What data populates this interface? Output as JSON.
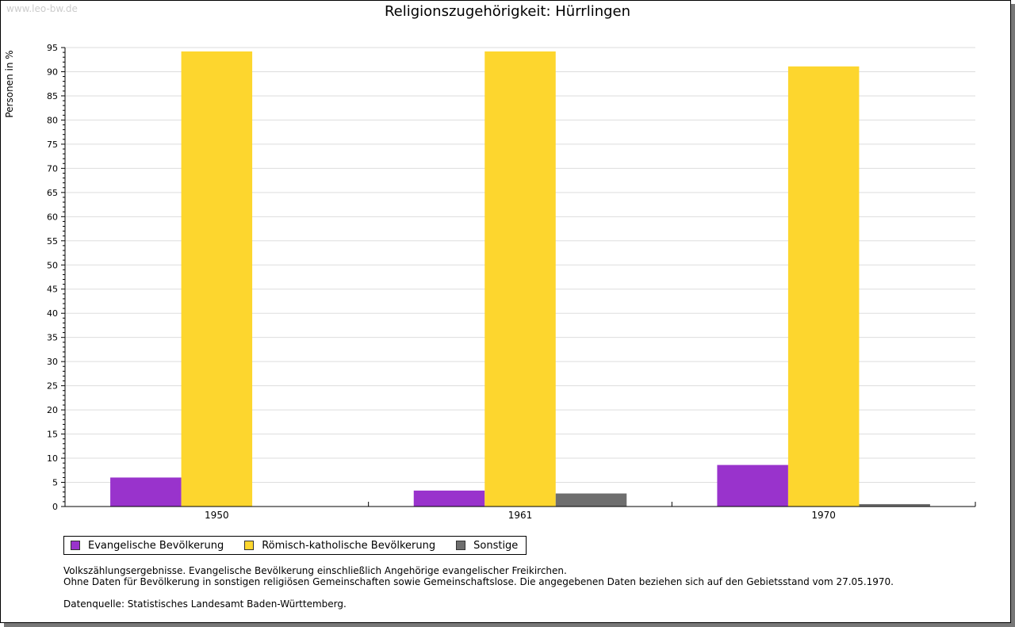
{
  "watermark": "www.leo-bw.de",
  "chart_data": {
    "type": "bar",
    "title": "Religionszugehörigkeit: Hürrlingen",
    "ylabel": "Personen in %",
    "xlabel": "",
    "ylim": [
      0,
      95
    ],
    "yticks": [
      0,
      5,
      10,
      15,
      20,
      25,
      30,
      35,
      40,
      45,
      50,
      55,
      60,
      65,
      70,
      75,
      80,
      85,
      90,
      95
    ],
    "grid": true,
    "categories": [
      "1950",
      "1961",
      "1970"
    ],
    "series": [
      {
        "name": "Evangelische Bevölkerung",
        "color": "#9933cc",
        "values": [
          6.0,
          3.3,
          8.6
        ]
      },
      {
        "name": "Römisch-katholische Bevölkerung",
        "color": "#fdd62e",
        "values": [
          94.2,
          94.2,
          91.1
        ]
      },
      {
        "name": "Sonstige",
        "color": "#6e6e6e",
        "values": [
          0,
          2.7,
          0.5
        ]
      }
    ],
    "legend_position": "bottom-left"
  },
  "notes": [
    "Volkszählungsergebnisse. Evangelische Bevölkerung einschließlich Angehörige evangelischer Freikirchen.",
    "Ohne Daten für Bevölkerung in sonstigen religiösen Gemeinschaften sowie Gemeinschaftslose. Die angegebenen Daten beziehen sich auf den Gebietsstand vom 27.05.1970.",
    "",
    "Datenquelle: Statistisches Landesamt Baden-Württemberg."
  ]
}
